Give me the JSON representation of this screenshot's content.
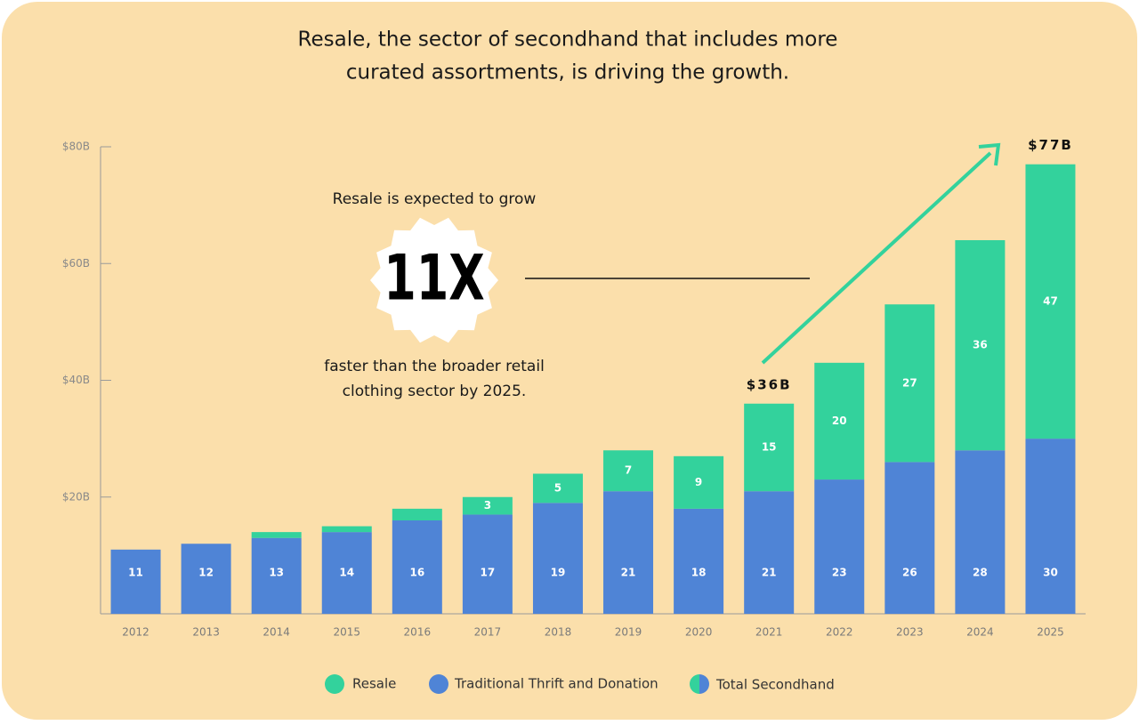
{
  "chart_data": {
    "type": "stacked_bar",
    "title": [
      "Resale, the sector of secondhand that includes more",
      "curated assortments, is driving the growth."
    ],
    "categories": [
      "2012",
      "2013",
      "2014",
      "2015",
      "2016",
      "2017",
      "2018",
      "2019",
      "2020",
      "2021",
      "2022",
      "2023",
      "2024",
      "2025"
    ],
    "series": [
      {
        "name": "Traditional Thrift and Donation",
        "color": "#4f84d6",
        "values": [
          11,
          12,
          13,
          14,
          16,
          17,
          19,
          21,
          18,
          21,
          23,
          26,
          28,
          30
        ]
      },
      {
        "name": "Resale",
        "color": "#33d29c",
        "values": [
          null,
          null,
          1,
          1,
          2,
          3,
          5,
          7,
          9,
          15,
          20,
          27,
          36,
          47
        ],
        "value_labels": [
          null,
          null,
          null,
          null,
          null,
          "3",
          "5",
          "7",
          "9",
          "15",
          "20",
          "27",
          "36",
          "47"
        ]
      }
    ],
    "total_legend": "Total Secondhand",
    "ylim": [
      0,
      80
    ],
    "yticks": [
      {
        "value": 20,
        "label": "$20B"
      },
      {
        "value": 40,
        "label": "$40B"
      },
      {
        "value": 60,
        "label": "$60B"
      },
      {
        "value": 80,
        "label": "$80B"
      }
    ],
    "annotations": [
      {
        "x": "2021",
        "text": "$36B"
      },
      {
        "x": "2025",
        "text": "$77B"
      }
    ],
    "callout": {
      "intro": "Resale is expected to grow",
      "figure": "11X",
      "outro": [
        "faster than the broader retail",
        "clothing sector by 2025."
      ]
    }
  }
}
